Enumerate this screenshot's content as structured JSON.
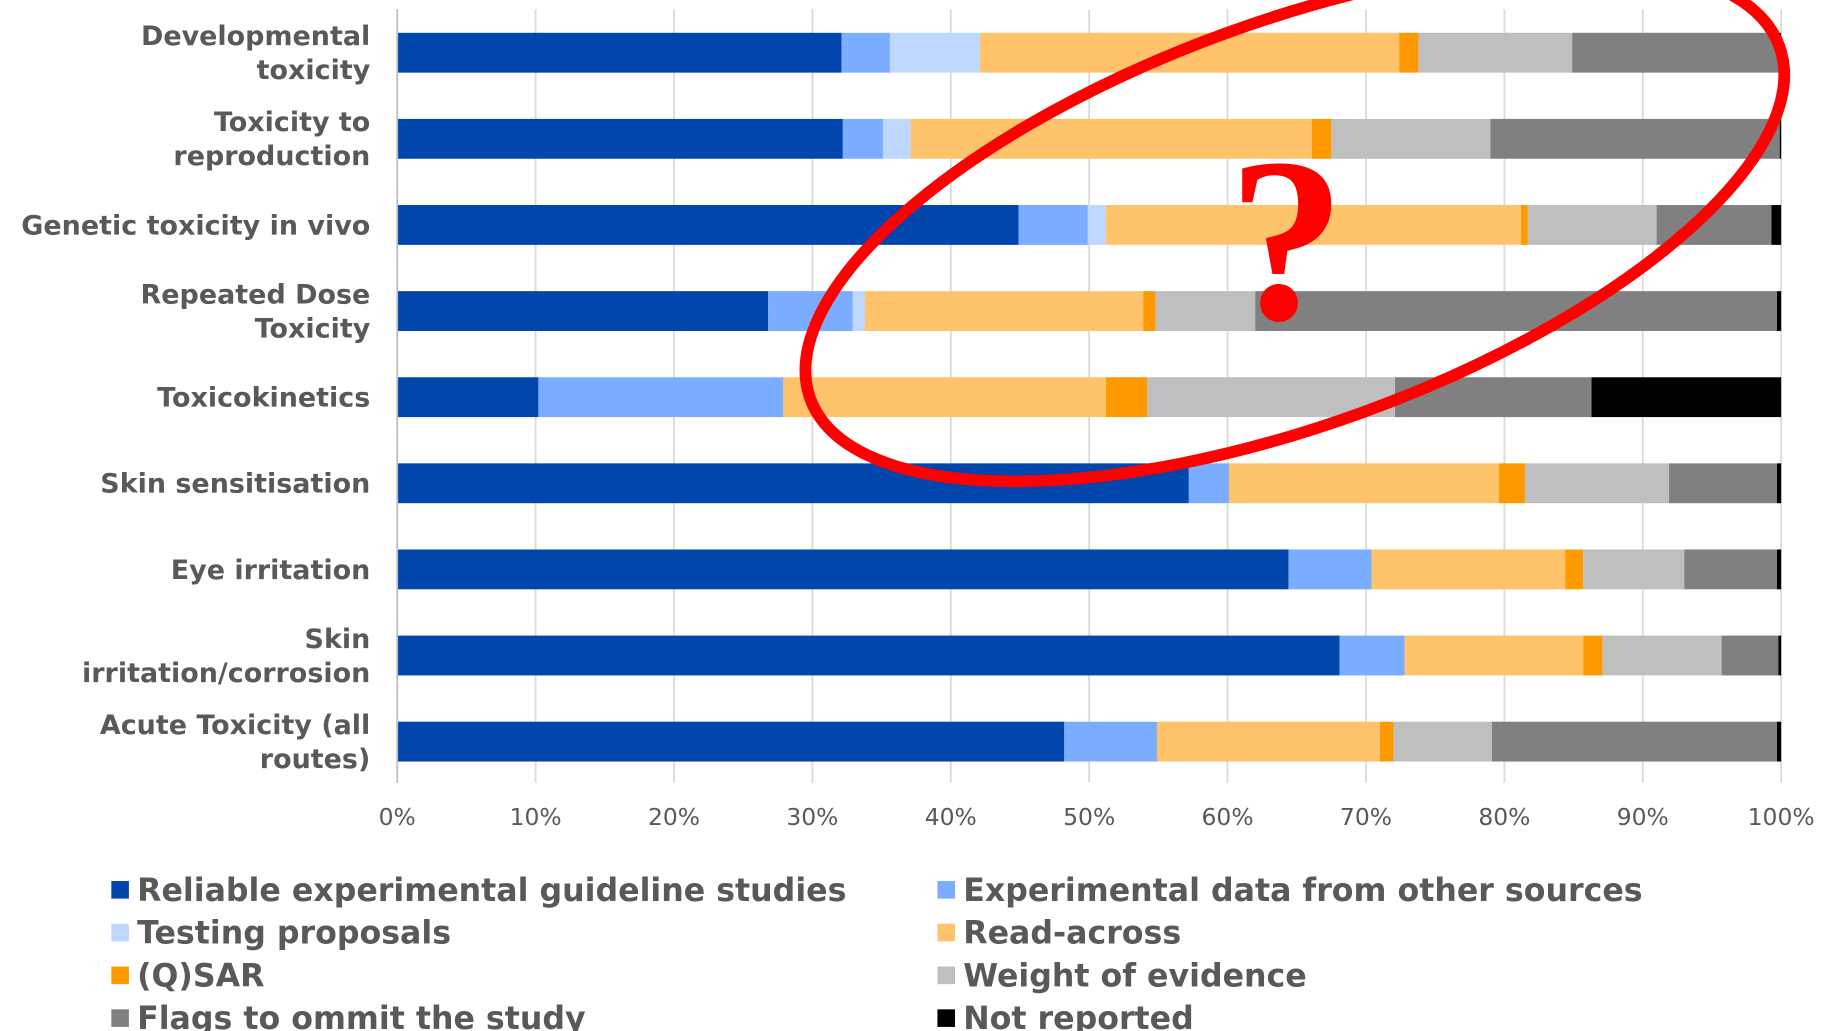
{
  "chart_data": {
    "type": "stacked-barh",
    "categories": [
      [
        "Developmental",
        "toxicity"
      ],
      [
        "Toxicity to",
        "reproduction"
      ],
      [
        "Genetic toxicity in vivo"
      ],
      [
        "Repeated Dose",
        "Toxicity"
      ],
      [
        "Toxicokinetics"
      ],
      [
        "Skin sensitisation"
      ],
      [
        "Eye irritation"
      ],
      [
        "Skin",
        "irritation/corrosion"
      ],
      [
        "Acute Toxicity (all",
        "routes)"
      ]
    ],
    "series": [
      {
        "name": "Reliable experimental guideline studies",
        "color": "#0046ad",
        "values": [
          32.1,
          32.2,
          44.9,
          26.8,
          10.2,
          57.2,
          64.4,
          68.1,
          48.2
        ]
      },
      {
        "name": "Experimental data from other sources",
        "color": "#7aadff",
        "values": [
          3.5,
          2.9,
          5.0,
          6.1,
          17.7,
          2.9,
          6.0,
          4.7,
          6.7
        ]
      },
      {
        "name": "Testing proposals",
        "color": "#bdd7ff",
        "values": [
          6.5,
          2.0,
          1.3,
          0.9,
          0,
          0,
          0,
          0,
          0
        ]
      },
      {
        "name": "Read-across",
        "color": "#ffc36b",
        "values": [
          30.3,
          29.0,
          30.0,
          20.1,
          23.3,
          19.5,
          14.0,
          12.9,
          16.1
        ]
      },
      {
        "name": "(Q)SAR",
        "color": "#ff9900",
        "values": [
          1.4,
          1.4,
          0.5,
          0.9,
          3.0,
          1.9,
          1.3,
          1.4,
          1.0
        ]
      },
      {
        "name": "Weight of evidence",
        "color": "#bfbfbf",
        "values": [
          11.1,
          11.5,
          9.3,
          7.2,
          17.9,
          10.4,
          7.3,
          8.6,
          7.1
        ]
      },
      {
        "name": "Flags to ommit the study",
        "color": "#808080",
        "values": [
          15.0,
          20.9,
          8.3,
          37.7,
          14.2,
          7.8,
          6.7,
          4.1,
          20.6
        ]
      },
      {
        "name": "Not reported",
        "color": "#000000",
        "values": [
          0.1,
          0.1,
          0.7,
          0.3,
          13.7,
          0.3,
          0.3,
          0.2,
          0.3
        ]
      }
    ],
    "xlim": [
      0,
      100
    ],
    "xticks": [
      {
        "value": 0,
        "label": "0%"
      },
      {
        "value": 10,
        "label": "10%"
      },
      {
        "value": 20,
        "label": "20%"
      },
      {
        "value": 30,
        "label": "30%"
      },
      {
        "value": 40,
        "label": "40%"
      },
      {
        "value": 50,
        "label": "50%"
      },
      {
        "value": 60,
        "label": "60%"
      },
      {
        "value": 70,
        "label": "70%"
      },
      {
        "value": 80,
        "label": "80%"
      },
      {
        "value": 90,
        "label": "90%"
      },
      {
        "value": 100,
        "label": "100%"
      }
    ],
    "grid": true,
    "annotation": "?"
  }
}
